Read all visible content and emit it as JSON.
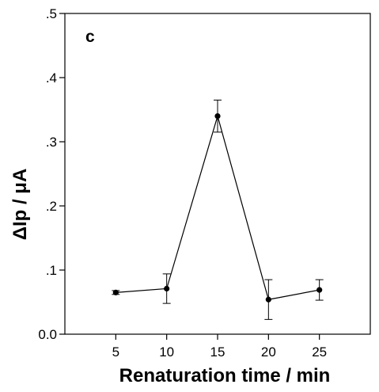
{
  "chart_data": {
    "type": "line",
    "panel_label": "c",
    "xlabel": "Renaturation time / min",
    "ylabel": "ΔIp / μA",
    "xlim": [
      0,
      30
    ],
    "ylim": [
      0,
      0.5
    ],
    "x_ticks": [
      5,
      10,
      15,
      20,
      25
    ],
    "x_tick_labels": [
      "5",
      "10",
      "15",
      "20",
      "25"
    ],
    "y_ticks": [
      0,
      0.1,
      0.2,
      0.3,
      0.4,
      0.5
    ],
    "y_tick_labels": [
      "0.0",
      ".1",
      ".2",
      ".3",
      ".4",
      ".5"
    ],
    "grid": false,
    "series": [
      {
        "x": [
          5,
          10,
          15,
          20,
          25
        ],
        "y": [
          0.065,
          0.071,
          0.34,
          0.054,
          0.069
        ],
        "error": [
          0.003,
          0.023,
          0.025,
          0.031,
          0.016
        ]
      }
    ],
    "colors": {
      "line": "#000000",
      "marker": "#000000",
      "axis": "#000000"
    }
  }
}
